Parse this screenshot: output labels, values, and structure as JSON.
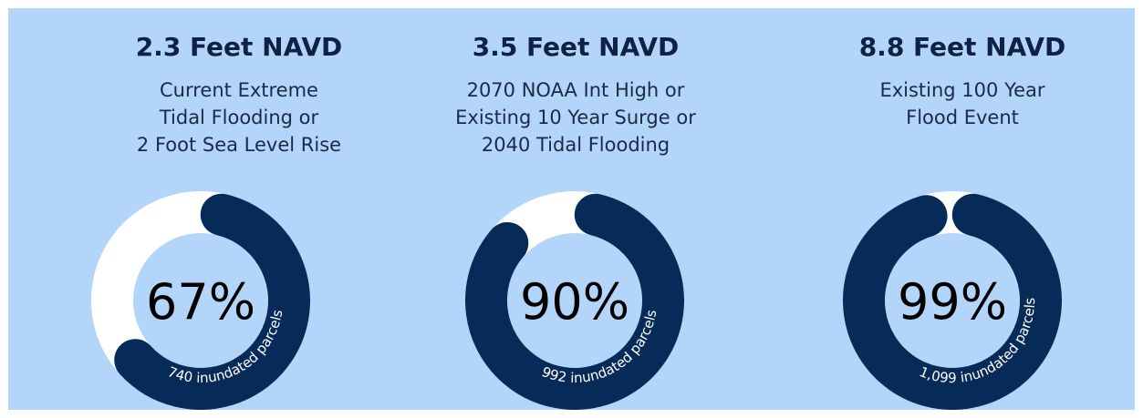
{
  "chart_data": [
    {
      "type": "pie",
      "title": "2.3 Feet NAVD",
      "description_lines": [
        "Current Extreme",
        "Tidal Flooding or",
        "2 Foot Sea Level Rise"
      ],
      "percent": 67,
      "center_label": "67%",
      "parcels_label": "740 inundated parcels"
    },
    {
      "type": "pie",
      "title": "3.5 Feet NAVD",
      "description_lines": [
        "2070 NOAA Int High or",
        "Existing 10 Year Surge or",
        "2040 Tidal Flooding"
      ],
      "percent": 90,
      "center_label": "90%",
      "parcels_label": "992 inundated parcels"
    },
    {
      "type": "pie",
      "title": "8.8 Feet NAVD",
      "description_lines": [
        "Existing 100 Year",
        "Flood Event"
      ],
      "percent": 99,
      "center_label": "99%",
      "parcels_label": "1,099 inundated parcels"
    }
  ],
  "colors": {
    "background": "#b3d5fa",
    "filled": "#072b58",
    "remaining": "#ffffff",
    "title_text": "#0f2244",
    "center_text": "#000000",
    "arc_text": "#ffffff"
  }
}
